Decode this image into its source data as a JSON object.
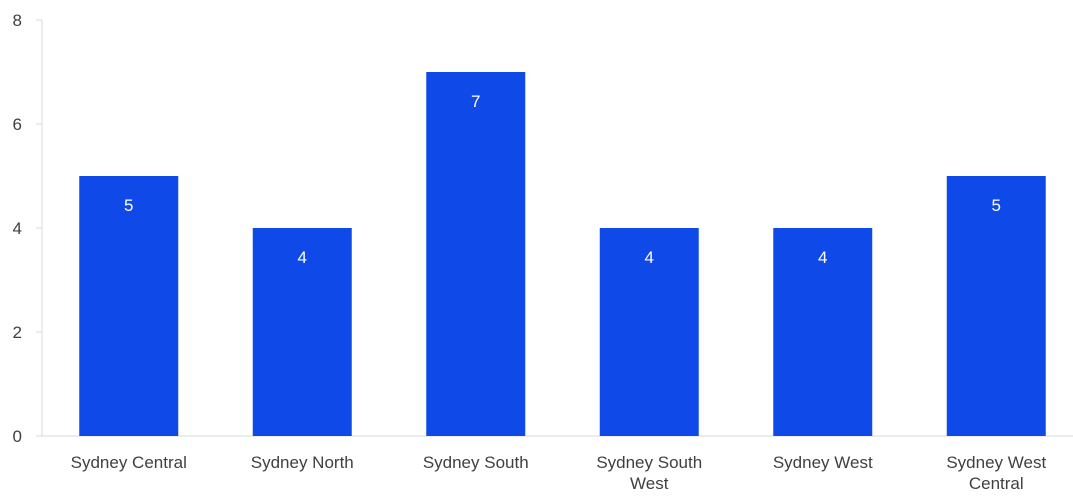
{
  "chart_data": {
    "type": "bar",
    "categories": [
      "Sydney Central",
      "Sydney North",
      "Sydney South",
      "Sydney South West",
      "Sydney West",
      "Sydney West Central"
    ],
    "values": [
      5,
      4,
      7,
      4,
      4,
      5
    ],
    "data_labels": [
      "5",
      "4",
      "7",
      "4",
      "4",
      "5"
    ],
    "ylim": [
      0,
      8
    ],
    "yticks": [
      "0",
      "2",
      "4",
      "6",
      "8"
    ],
    "title": "",
    "xlabel": "",
    "ylabel": "",
    "grid": false,
    "legend": "none",
    "bar_color": "#0f4ae8"
  }
}
